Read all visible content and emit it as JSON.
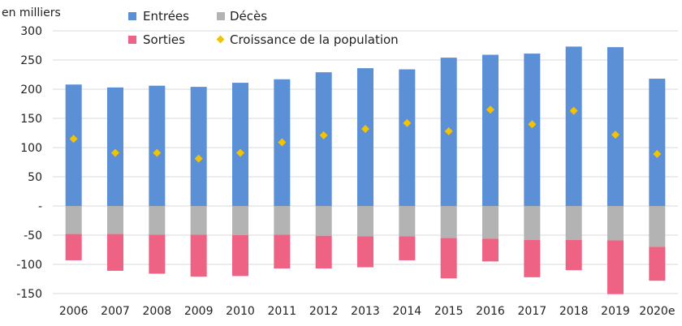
{
  "chart_data": {
    "type": "bar",
    "unit_label": "en milliers",
    "categories": [
      "2006",
      "2007",
      "2008",
      "2009",
      "2010",
      "2011",
      "2012",
      "2013",
      "2014",
      "2015",
      "2016",
      "2017",
      "2018",
      "2019",
      "2020e"
    ],
    "y_ticks": [
      {
        "value": 300,
        "label": "300"
      },
      {
        "value": 250,
        "label": "250"
      },
      {
        "value": 200,
        "label": "200"
      },
      {
        "value": 150,
        "label": "150"
      },
      {
        "value": 100,
        "label": "100"
      },
      {
        "value": 50,
        "label": "50"
      },
      {
        "value": 0,
        "label": "-"
      },
      {
        "value": -50,
        "label": "-50"
      },
      {
        "value": -100,
        "label": "-100"
      },
      {
        "value": -150,
        "label": "-150"
      }
    ],
    "ylim": [
      -150,
      300
    ],
    "grid": true,
    "legend_position": "top",
    "series": [
      {
        "name": "Entrées",
        "color": "#5b8fd6",
        "kind": "bar",
        "values": [
          208,
          203,
          206,
          204,
          211,
          217,
          229,
          236,
          234,
          254,
          259,
          261,
          273,
          272,
          218
        ]
      },
      {
        "name": "Décès",
        "color": "#b3b3b3",
        "kind": "bar",
        "values": [
          -48,
          -48,
          -49,
          -49,
          -50,
          -49,
          -51,
          -52,
          -52,
          -55,
          -56,
          -58,
          -58,
          -59,
          -70
        ]
      },
      {
        "name": "Sorties",
        "color": "#ee6384",
        "kind": "bar",
        "values": [
          -45,
          -63,
          -67,
          -72,
          -70,
          -58,
          -56,
          -53,
          -41,
          -69,
          -39,
          -64,
          -52,
          -92,
          -58
        ]
      },
      {
        "name": "Croissance de la population",
        "color": "#f5c200",
        "kind": "marker",
        "values": [
          115,
          91,
          91,
          81,
          91,
          109,
          121,
          132,
          142,
          128,
          165,
          140,
          163,
          122,
          89
        ]
      }
    ]
  }
}
